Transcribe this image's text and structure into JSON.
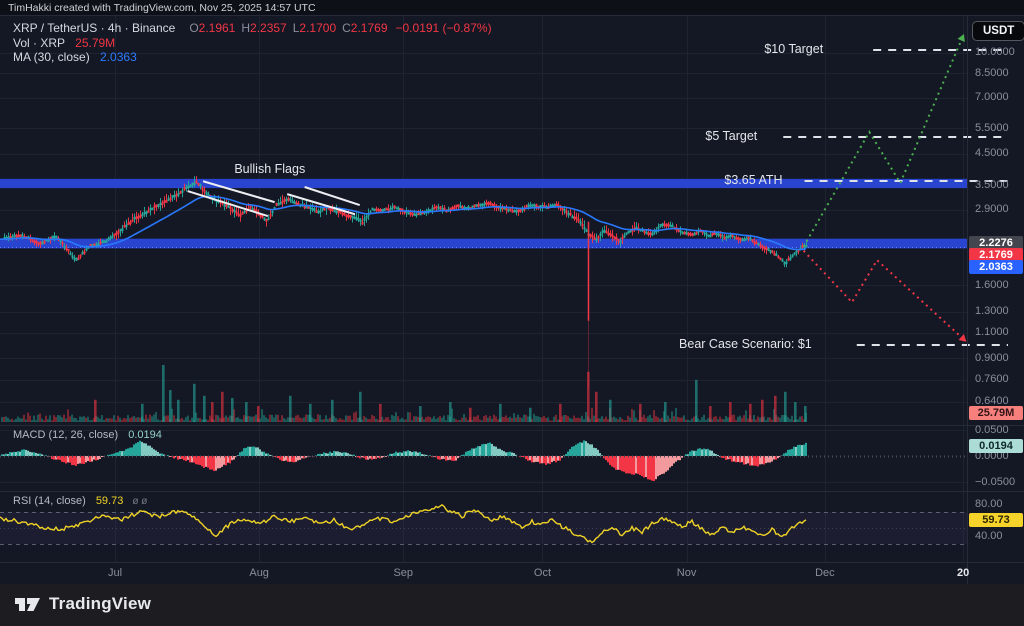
{
  "attribution": "TimHakki created with TradingView.com, Nov 25, 2025 14:57 UTC",
  "currency_button": "USDT",
  "legend": {
    "symbol": "XRP / TetherUS · 4h · Binance",
    "ohlc": [
      {
        "k": "O",
        "v": "2.1961"
      },
      {
        "k": "H",
        "v": "2.2357"
      },
      {
        "k": "L",
        "v": "2.1700"
      },
      {
        "k": "C",
        "v": "2.1769"
      }
    ],
    "change": "−0.0191 (−0.87%)",
    "vol_label": "Vol · XRP",
    "vol_value": "25.79M",
    "ma_label": "MA (30, close)",
    "ma_value": "2.0363"
  },
  "macd_legend": {
    "label": "MACD (12, 26, close)",
    "value": "0.0194"
  },
  "rsi_legend": {
    "label": "RSI (14, close)",
    "value": "59.73",
    "extra": "ø ø"
  },
  "footer_logo": "TradingView",
  "colors": {
    "up": "#26a69a",
    "down": "#f23645",
    "ma_line": "#2979ff",
    "band_blue": "#2945cf",
    "bull_projection": "#4caf50",
    "bear_projection": "#f23645",
    "rsi_line": "#f0d327",
    "annotation_white": "#dfe2e8",
    "grid": "#1e2330",
    "separator": "#262b38",
    "macd_pos": "#26a69a",
    "macd_pos_light": "#82cac2",
    "macd_neg": "#f23645",
    "macd_neg_light": "#f39a9e"
  },
  "chart_data": {
    "type": "candlestick",
    "symbol": "XRP/USDT",
    "exchange": "Binance",
    "interval": "4h",
    "title_annotations": [
      "Bullish Flags",
      "$10 Target",
      "$5 Target",
      "$3.65 ATH",
      "Bear Case Scenario: $1"
    ],
    "current": {
      "open": 2.1961,
      "high": 2.2357,
      "low": 2.17,
      "close": 2.1769,
      "change": -0.0191,
      "change_pct": -0.87,
      "volume": "25.79M",
      "ma30": 2.0363,
      "macd_hist": 0.0194,
      "rsi14": 59.73
    },
    "y_axis": {
      "scale": "log",
      "ticks": [
        {
          "label": "10.0000",
          "value": 10.0
        },
        {
          "label": "8.5000",
          "value": 8.5
        },
        {
          "label": "7.0000",
          "value": 7.0
        },
        {
          "label": "5.5000",
          "value": 5.5
        },
        {
          "label": "4.5000",
          "value": 4.5
        },
        {
          "label": "3.5000",
          "value": 3.5
        },
        {
          "label": "2.9000",
          "value": 2.9
        },
        {
          "label": "1.6000",
          "value": 1.6
        },
        {
          "label": "1.3000",
          "value": 1.3
        },
        {
          "label": "1.1000",
          "value": 1.1
        },
        {
          "label": "0.9000",
          "value": 0.9
        },
        {
          "label": "0.7600",
          "value": 0.76
        },
        {
          "label": "0.6400",
          "value": 0.64
        }
      ]
    },
    "x_axis": {
      "ticks": [
        {
          "label": "Jul",
          "pos": 0.119
        },
        {
          "label": "Aug",
          "pos": 0.268
        },
        {
          "label": "Sep",
          "pos": 0.417
        },
        {
          "label": "Oct",
          "pos": 0.561
        },
        {
          "label": "Nov",
          "pos": 0.71
        },
        {
          "label": "Dec",
          "pos": 0.853
        },
        {
          "label": "20",
          "pos": 0.996,
          "strong": true
        }
      ]
    },
    "badges": {
      "price_level": {
        "text": "2.2276",
        "bg": "#43464e",
        "fg": "#ffffff"
      },
      "last_price": {
        "text": "2.1769",
        "bg": "#f23645",
        "fg": "#ffffff"
      },
      "ma": {
        "text": "2.0363",
        "bg": "#2962ff",
        "fg": "#ffffff"
      },
      "volume": {
        "text": "25.79M",
        "bg": "#f7807c",
        "fg": "#331418"
      },
      "macd": {
        "text": "0.0194",
        "bg": "#acdcd6",
        "fg": "#0f2a27"
      },
      "rsi": {
        "text": "59.73",
        "bg": "#f6d32b",
        "fg": "#2b2503"
      }
    },
    "macd_scale": [
      {
        "label": "0.0500",
        "value": 0.05
      },
      {
        "label": "0.0000",
        "value": 0.0
      },
      {
        "label": "−0.0500",
        "value": -0.05
      }
    ],
    "rsi_scale": [
      {
        "label": "80.00",
        "value": 80
      },
      {
        "label": "40.00",
        "value": 40
      }
    ],
    "price_keyline": [
      [
        0.0,
        2.3
      ],
      [
        0.021,
        2.38
      ],
      [
        0.041,
        2.22
      ],
      [
        0.057,
        2.35
      ],
      [
        0.078,
        1.95
      ],
      [
        0.093,
        2.18
      ],
      [
        0.109,
        2.26
      ],
      [
        0.122,
        2.42
      ],
      [
        0.137,
        2.68
      ],
      [
        0.152,
        2.86
      ],
      [
        0.168,
        3.06
      ],
      [
        0.183,
        3.28
      ],
      [
        0.196,
        3.5
      ],
      [
        0.203,
        3.62
      ],
      [
        0.213,
        3.3
      ],
      [
        0.224,
        3.12
      ],
      [
        0.236,
        2.96
      ],
      [
        0.248,
        2.78
      ],
      [
        0.259,
        2.96
      ],
      [
        0.267,
        2.82
      ],
      [
        0.276,
        2.66
      ],
      [
        0.285,
        3.02
      ],
      [
        0.298,
        3.16
      ],
      [
        0.307,
        3.04
      ],
      [
        0.317,
        2.97
      ],
      [
        0.328,
        2.86
      ],
      [
        0.338,
        2.95
      ],
      [
        0.348,
        2.86
      ],
      [
        0.359,
        2.78
      ],
      [
        0.368,
        2.7
      ],
      [
        0.375,
        2.62
      ],
      [
        0.385,
        2.92
      ],
      [
        0.396,
        2.88
      ],
      [
        0.407,
        2.96
      ],
      [
        0.418,
        2.86
      ],
      [
        0.429,
        2.79
      ],
      [
        0.441,
        2.86
      ],
      [
        0.452,
        2.96
      ],
      [
        0.462,
        2.88
      ],
      [
        0.473,
        3.0
      ],
      [
        0.483,
        2.93
      ],
      [
        0.493,
        2.99
      ],
      [
        0.504,
        3.06
      ],
      [
        0.514,
        2.96
      ],
      [
        0.525,
        2.9
      ],
      [
        0.536,
        2.86
      ],
      [
        0.546,
        3.0
      ],
      [
        0.556,
        2.98
      ],
      [
        0.566,
        2.96
      ],
      [
        0.575,
        3.03
      ],
      [
        0.583,
        2.9
      ],
      [
        0.591,
        2.76
      ],
      [
        0.6,
        2.64
      ],
      [
        0.608,
        2.4
      ],
      [
        0.616,
        2.28
      ],
      [
        0.624,
        2.46
      ],
      [
        0.632,
        2.38
      ],
      [
        0.641,
        2.26
      ],
      [
        0.649,
        2.43
      ],
      [
        0.658,
        2.51
      ],
      [
        0.666,
        2.45
      ],
      [
        0.674,
        2.38
      ],
      [
        0.683,
        2.56
      ],
      [
        0.691,
        2.58
      ],
      [
        0.699,
        2.5
      ],
      [
        0.707,
        2.42
      ],
      [
        0.716,
        2.39
      ],
      [
        0.724,
        2.46
      ],
      [
        0.732,
        2.35
      ],
      [
        0.74,
        2.41
      ],
      [
        0.749,
        2.32
      ],
      [
        0.757,
        2.37
      ],
      [
        0.765,
        2.28
      ],
      [
        0.774,
        2.33
      ],
      [
        0.782,
        2.22
      ],
      [
        0.79,
        2.14
      ],
      [
        0.798,
        2.08
      ],
      [
        0.806,
        1.99
      ],
      [
        0.812,
        1.89
      ],
      [
        0.818,
        2.01
      ],
      [
        0.824,
        2.09
      ],
      [
        0.83,
        2.18
      ]
    ],
    "crash_wick": {
      "pos": 0.608,
      "top": 2.64,
      "low": 1.21
    },
    "resistance_band": [
      3.44,
      3.7
    ],
    "support_band": [
      2.14,
      2.31
    ],
    "flags": {
      "label": "Bullish Flags",
      "label_pos": [
        0.279,
        3.96
      ],
      "lines": [
        [
          0.21,
          3.63,
          0.284,
          3.08
        ],
        [
          0.194,
          3.36,
          0.277,
          2.76
        ],
        [
          0.315,
          3.47,
          0.372,
          3.01
        ],
        [
          0.297,
          3.28,
          0.367,
          2.8
        ]
      ]
    },
    "target_lines": [
      {
        "label": "$10 Target",
        "price": 10.2,
        "from": 0.903,
        "gap": 50
      },
      {
        "label": "$5 Target",
        "price": 5.14,
        "from": 0.81,
        "gap": 26
      },
      {
        "label": "$3.65 ATH",
        "price": 3.65,
        "from": 0.832,
        "gap": 22
      },
      {
        "label": "Bear Case Scenario: $1",
        "price": 1.0,
        "from": 0.886,
        "gap": 45
      }
    ],
    "projections": {
      "bull": [
        [
          0.831,
          2.17
        ],
        [
          0.899,
          5.35
        ],
        [
          0.931,
          3.58
        ],
        [
          0.994,
          11.0
        ]
      ],
      "bear": [
        [
          0.831,
          2.1
        ],
        [
          0.881,
          1.4
        ],
        [
          0.907,
          1.95
        ],
        [
          0.994,
          1.065
        ]
      ]
    },
    "macd_series": [
      [
        0.0,
        0.003
      ],
      [
        0.016,
        0.008
      ],
      [
        0.026,
        0.012
      ],
      [
        0.041,
        0.004
      ],
      [
        0.057,
        -0.006
      ],
      [
        0.078,
        -0.018
      ],
      [
        0.098,
        -0.008
      ],
      [
        0.114,
        0.004
      ],
      [
        0.129,
        0.01
      ],
      [
        0.145,
        0.028
      ],
      [
        0.155,
        0.02
      ],
      [
        0.165,
        0.006
      ],
      [
        0.181,
        -0.004
      ],
      [
        0.196,
        -0.01
      ],
      [
        0.212,
        -0.022
      ],
      [
        0.222,
        -0.028
      ],
      [
        0.238,
        -0.012
      ],
      [
        0.253,
        0.015
      ],
      [
        0.264,
        0.018
      ],
      [
        0.274,
        0.006
      ],
      [
        0.29,
        -0.008
      ],
      [
        0.302,
        -0.013
      ],
      [
        0.315,
        -0.004
      ],
      [
        0.331,
        0.004
      ],
      [
        0.346,
        0.008
      ],
      [
        0.362,
        0.004
      ],
      [
        0.377,
        -0.006
      ],
      [
        0.393,
        -0.004
      ],
      [
        0.408,
        0.006
      ],
      [
        0.424,
        0.01
      ],
      [
        0.44,
        0.004
      ],
      [
        0.455,
        -0.006
      ],
      [
        0.47,
        -0.01
      ],
      [
        0.486,
        0.012
      ],
      [
        0.496,
        0.02
      ],
      [
        0.507,
        0.024
      ],
      [
        0.517,
        0.012
      ],
      [
        0.533,
        0.004
      ],
      [
        0.548,
        -0.01
      ],
      [
        0.564,
        -0.016
      ],
      [
        0.579,
        -0.008
      ],
      [
        0.593,
        0.02
      ],
      [
        0.605,
        0.03
      ],
      [
        0.617,
        0.014
      ],
      [
        0.628,
        -0.012
      ],
      [
        0.638,
        -0.026
      ],
      [
        0.648,
        -0.032
      ],
      [
        0.662,
        -0.036
      ],
      [
        0.675,
        -0.048
      ],
      [
        0.688,
        -0.03
      ],
      [
        0.701,
        -0.01
      ],
      [
        0.714,
        0.008
      ],
      [
        0.724,
        0.015
      ],
      [
        0.734,
        0.012
      ],
      [
        0.747,
        -0.005
      ],
      [
        0.757,
        -0.009
      ],
      [
        0.77,
        -0.015
      ],
      [
        0.784,
        -0.019
      ],
      [
        0.798,
        -0.011
      ],
      [
        0.815,
        0.01
      ],
      [
        0.825,
        0.02
      ],
      [
        0.834,
        0.025
      ]
    ],
    "rsi_series": [
      [
        0.0,
        62
      ],
      [
        0.021,
        58
      ],
      [
        0.041,
        52
      ],
      [
        0.062,
        48
      ],
      [
        0.083,
        55
      ],
      [
        0.103,
        65
      ],
      [
        0.124,
        60
      ],
      [
        0.145,
        70
      ],
      [
        0.165,
        64
      ],
      [
        0.186,
        72
      ],
      [
        0.207,
        58
      ],
      [
        0.222,
        40
      ],
      [
        0.238,
        55
      ],
      [
        0.253,
        62
      ],
      [
        0.269,
        55
      ],
      [
        0.284,
        65
      ],
      [
        0.3,
        58
      ],
      [
        0.315,
        62
      ],
      [
        0.331,
        55
      ],
      [
        0.346,
        60
      ],
      [
        0.362,
        48
      ],
      [
        0.377,
        55
      ],
      [
        0.393,
        62
      ],
      [
        0.408,
        58
      ],
      [
        0.424,
        66
      ],
      [
        0.44,
        72
      ],
      [
        0.455,
        78
      ],
      [
        0.467,
        70
      ],
      [
        0.478,
        65
      ],
      [
        0.488,
        72
      ],
      [
        0.498,
        68
      ],
      [
        0.509,
        60
      ],
      [
        0.519,
        65
      ],
      [
        0.529,
        58
      ],
      [
        0.54,
        52
      ],
      [
        0.55,
        58
      ],
      [
        0.561,
        54
      ],
      [
        0.571,
        60
      ],
      [
        0.581,
        52
      ],
      [
        0.591,
        45
      ],
      [
        0.602,
        38
      ],
      [
        0.612,
        32
      ],
      [
        0.623,
        45
      ],
      [
        0.633,
        52
      ],
      [
        0.643,
        42
      ],
      [
        0.654,
        50
      ],
      [
        0.664,
        45
      ],
      [
        0.674,
        55
      ],
      [
        0.685,
        62
      ],
      [
        0.695,
        58
      ],
      [
        0.705,
        52
      ],
      [
        0.716,
        58
      ],
      [
        0.726,
        48
      ],
      [
        0.736,
        42
      ],
      [
        0.747,
        50
      ],
      [
        0.757,
        44
      ],
      [
        0.767,
        52
      ],
      [
        0.778,
        46
      ],
      [
        0.788,
        40
      ],
      [
        0.798,
        48
      ],
      [
        0.809,
        38
      ],
      [
        0.819,
        50
      ],
      [
        0.827,
        56
      ],
      [
        0.834,
        59.73
      ]
    ],
    "volume_spikes": [
      [
        0.098,
        0.39,
        "d"
      ],
      [
        0.147,
        0.32,
        "u"
      ],
      [
        0.169,
        1.0,
        "u"
      ],
      [
        0.176,
        0.56,
        "u"
      ],
      [
        0.184,
        0.39,
        "u"
      ],
      [
        0.201,
        0.67,
        "u"
      ],
      [
        0.211,
        0.46,
        "u"
      ],
      [
        0.219,
        0.35,
        "d"
      ],
      [
        0.23,
        0.53,
        "d"
      ],
      [
        0.24,
        0.42,
        "u"
      ],
      [
        0.254,
        0.35,
        "u"
      ],
      [
        0.267,
        0.28,
        "d"
      ],
      [
        0.3,
        0.46,
        "u"
      ],
      [
        0.321,
        0.32,
        "u"
      ],
      [
        0.343,
        0.39,
        "u"
      ],
      [
        0.372,
        0.53,
        "u"
      ],
      [
        0.393,
        0.32,
        "d"
      ],
      [
        0.434,
        0.28,
        "u"
      ],
      [
        0.465,
        0.35,
        "u"
      ],
      [
        0.486,
        0.25,
        "d"
      ],
      [
        0.517,
        0.32,
        "u"
      ],
      [
        0.548,
        0.25,
        "u"
      ],
      [
        0.579,
        0.32,
        "d"
      ],
      [
        0.608,
        0.88,
        "d"
      ],
      [
        0.616,
        0.53,
        "d"
      ],
      [
        0.631,
        0.39,
        "u"
      ],
      [
        0.662,
        0.32,
        "d"
      ],
      [
        0.688,
        0.35,
        "u"
      ],
      [
        0.72,
        0.74,
        "u"
      ],
      [
        0.734,
        0.28,
        "d"
      ],
      [
        0.755,
        0.35,
        "d"
      ],
      [
        0.776,
        0.32,
        "d"
      ],
      [
        0.788,
        0.39,
        "d"
      ],
      [
        0.801,
        0.46,
        "d"
      ],
      [
        0.812,
        0.53,
        "u"
      ],
      [
        0.822,
        0.35,
        "u"
      ],
      [
        0.832,
        0.28,
        "u"
      ]
    ]
  }
}
